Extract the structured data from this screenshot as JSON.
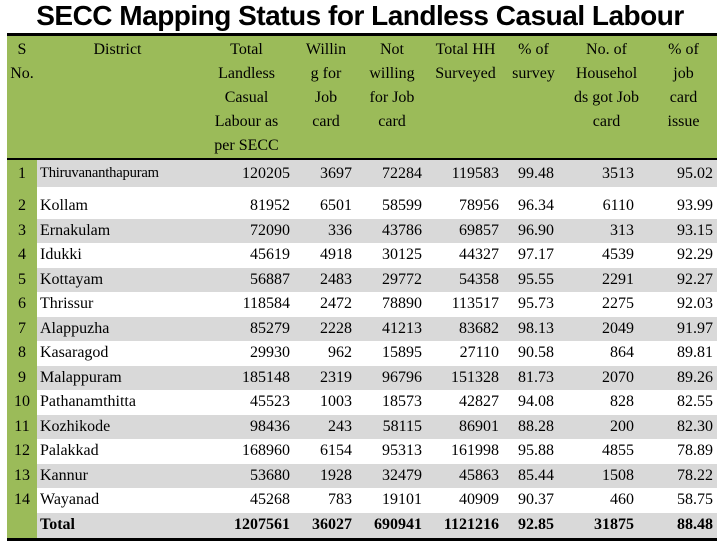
{
  "title": "SECC Mapping Status for Landless Casual Labour",
  "colors": {
    "header_green": "#9BBB59",
    "stripe_gray": "#D9D9D9",
    "border_black": "#000000",
    "row_white": "#FFFFFF"
  },
  "table": {
    "headers": [
      "S\nNo.",
      "District",
      "Total\nLandless\nCasual\nLabour as\nper SECC",
      "Willin\ng for\nJob\ncard",
      "Not\nwilling\nfor Job\ncard",
      "Total HH\nSurveyed",
      "% of\nsurvey",
      "No. of\nHousehol\nds got Job\ncard",
      "% of\njob\ncard\nissue"
    ],
    "rows": [
      {
        "cells": [
          "1",
          "Thiruvananthapuram",
          "120205",
          "3697",
          "72284",
          "119583",
          "99.48",
          "3513",
          "95.02"
        ]
      },
      {
        "cells": [
          "2",
          "Kollam",
          "81952",
          "6501",
          "58599",
          "78956",
          "96.34",
          "6110",
          "93.99"
        ]
      },
      {
        "cells": [
          "3",
          "Ernakulam",
          "72090",
          "336",
          "43786",
          "69857",
          "96.90",
          "313",
          "93.15"
        ]
      },
      {
        "cells": [
          "4",
          "Idukki",
          "45619",
          "4918",
          "30125",
          "44327",
          "97.17",
          "4539",
          "92.29"
        ]
      },
      {
        "cells": [
          "5",
          "Kottayam",
          "56887",
          "2483",
          "29772",
          "54358",
          "95.55",
          "2291",
          "92.27"
        ]
      },
      {
        "cells": [
          "6",
          "Thrissur",
          "118584",
          "2472",
          "78890",
          "113517",
          "95.73",
          "2275",
          "92.03"
        ]
      },
      {
        "cells": [
          "7",
          "Alappuzha",
          "85279",
          "2228",
          "41213",
          "83682",
          "98.13",
          "2049",
          "91.97"
        ]
      },
      {
        "cells": [
          "8",
          "Kasaragod",
          "29930",
          "962",
          "15895",
          "27110",
          "90.58",
          "864",
          "89.81"
        ]
      },
      {
        "cells": [
          "9",
          "Malappuram",
          "185148",
          "2319",
          "96796",
          "151328",
          "81.73",
          "2070",
          "89.26"
        ]
      },
      {
        "cells": [
          "10",
          "Pathanamthitta",
          "45523",
          "1003",
          "18573",
          "42827",
          "94.08",
          "828",
          "82.55"
        ]
      },
      {
        "cells": [
          "11",
          "Kozhikode",
          "98436",
          "243",
          "58115",
          "86901",
          "88.28",
          "200",
          "82.30"
        ]
      },
      {
        "cells": [
          "12",
          "Palakkad",
          "168960",
          "6154",
          "95313",
          "161998",
          "95.88",
          "4855",
          "78.89"
        ]
      },
      {
        "cells": [
          "13",
          "Kannur",
          "53680",
          "1928",
          "32479",
          "45863",
          "85.44",
          "1508",
          "78.22"
        ]
      },
      {
        "cells": [
          "14",
          "Wayanad",
          "45268",
          "783",
          "19101",
          "40909",
          "90.37",
          "460",
          "58.75"
        ]
      }
    ],
    "total_row": {
      "cells": [
        "",
        "Total",
        "1207561",
        "36027",
        "690941",
        "1121216",
        "92.85",
        "31875",
        "88.48"
      ]
    }
  }
}
